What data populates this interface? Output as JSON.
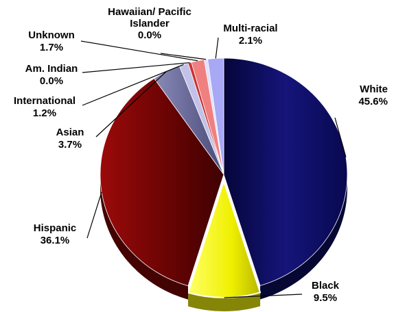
{
  "chart_data": {
    "type": "pie",
    "style": "3d-exploded",
    "slices": [
      {
        "name": "White",
        "value": 45.6,
        "value_label": "45.6%",
        "color": "#0d0d5c"
      },
      {
        "name": "Black",
        "value": 9.5,
        "value_label": "9.5%",
        "color": "#f2f20f"
      },
      {
        "name": "Hispanic",
        "value": 36.1,
        "value_label": "36.1%",
        "color": "#7a0505"
      },
      {
        "name": "Asian",
        "value": 3.7,
        "value_label": "3.7%",
        "color": "#6b6b99"
      },
      {
        "name": "International",
        "value": 1.2,
        "value_label": "1.2%",
        "color": "#c2c2e8"
      },
      {
        "name": "Am. Indian",
        "value": 0.0,
        "value_label": "0.0%",
        "color": "#cc3333"
      },
      {
        "name": "Unknown",
        "value": 1.7,
        "value_label": "1.7%",
        "color": "#f08080"
      },
      {
        "name": "Hawaiian/ Pacific Islander",
        "name_lines": [
          "Hawaiian/ Pacific",
          "Islander"
        ],
        "value": 0.0,
        "value_label": "0.0%",
        "color": "#e0e0ff"
      },
      {
        "name": "Multi-racial",
        "value": 2.1,
        "value_label": "2.1%",
        "color": "#a8a8f5"
      }
    ],
    "legend": "none"
  }
}
